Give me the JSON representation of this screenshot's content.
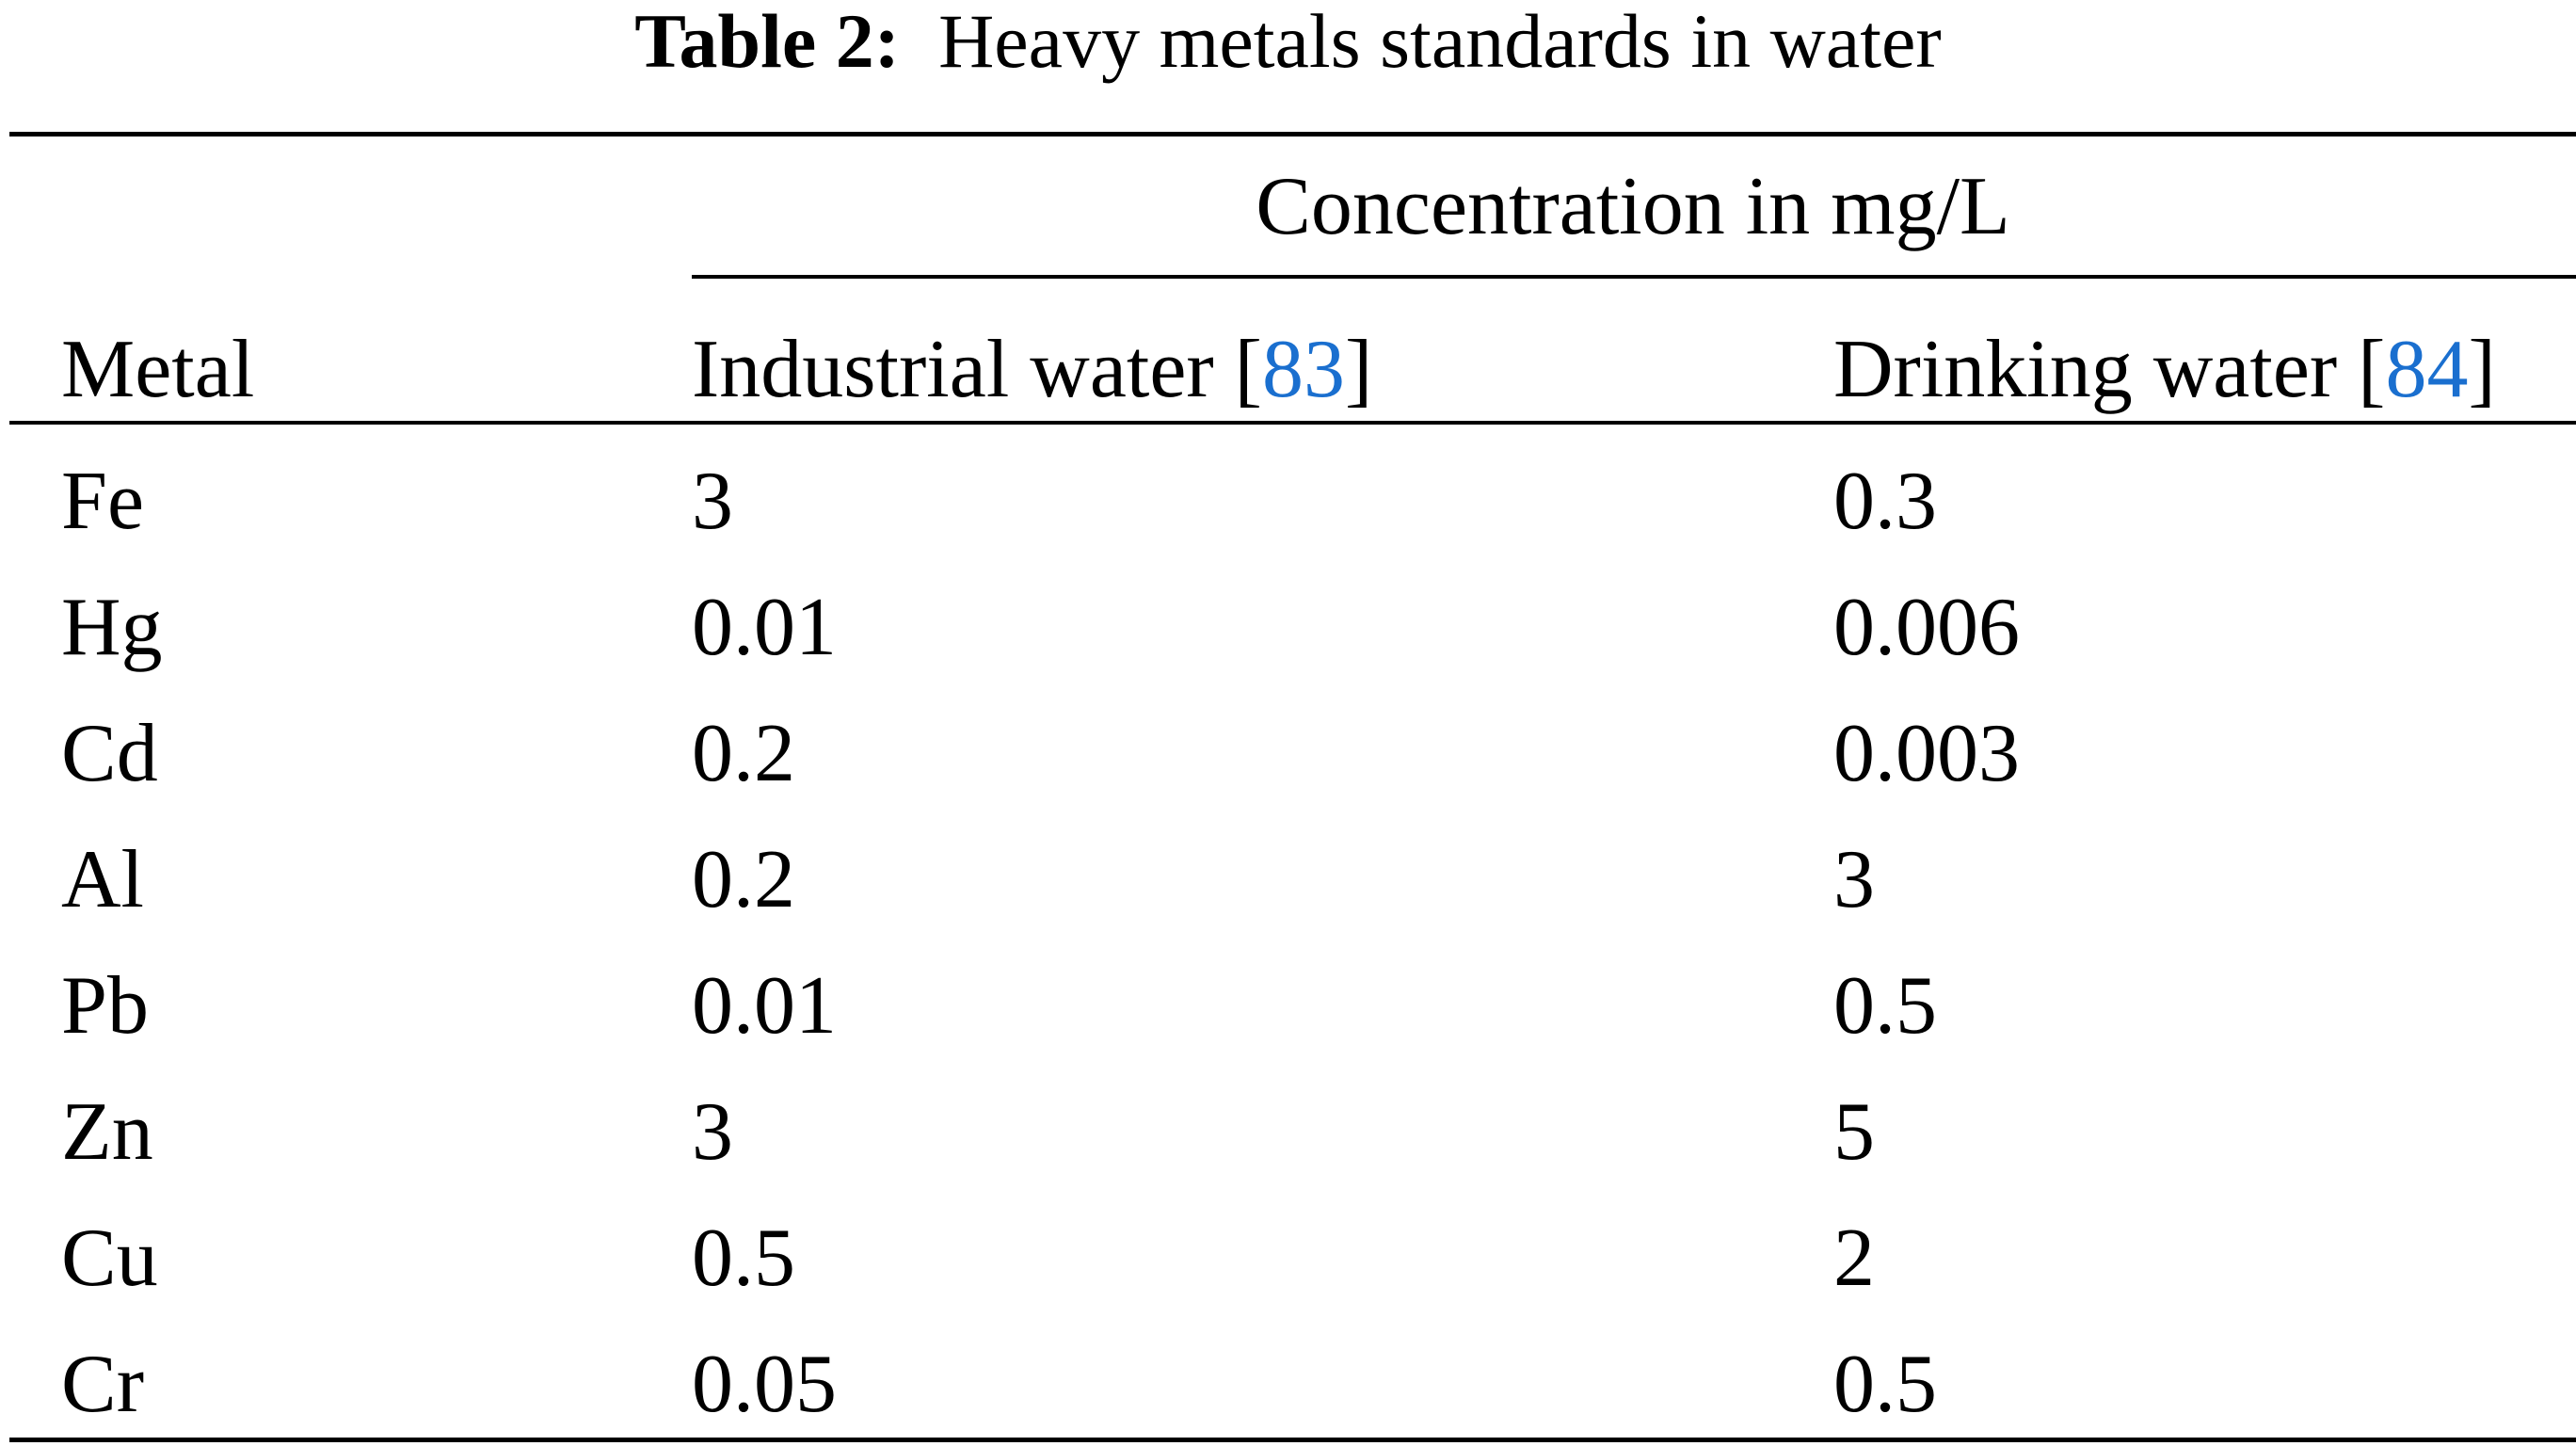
{
  "caption": {
    "label": "Table 2:",
    "text": "Heavy metals standards in water"
  },
  "header": {
    "spanner": "Concentration in mg/L",
    "col_metal": "Metal",
    "col_industrial": "Industrial water [",
    "col_industrial_ref": "83",
    "col_industrial_close": "]",
    "col_drinking": "Drinking water [",
    "col_drinking_ref": "84",
    "col_drinking_close": "]"
  },
  "rows": [
    {
      "metal": "Fe",
      "industrial": "3",
      "drinking": "0.3"
    },
    {
      "metal": "Hg",
      "industrial": "0.01",
      "drinking": "0.006"
    },
    {
      "metal": "Cd",
      "industrial": "0.2",
      "drinking": "0.003"
    },
    {
      "metal": "Al",
      "industrial": "0.2",
      "drinking": "3"
    },
    {
      "metal": "Pb",
      "industrial": "0.01",
      "drinking": "0.5"
    },
    {
      "metal": "Zn",
      "industrial": "3",
      "drinking": "5"
    },
    {
      "metal": "Cu",
      "industrial": "0.5",
      "drinking": "2"
    },
    {
      "metal": "Cr",
      "industrial": "0.05",
      "drinking": "0.5"
    }
  ],
  "colors": {
    "reference_link": "#1a6fcf"
  }
}
